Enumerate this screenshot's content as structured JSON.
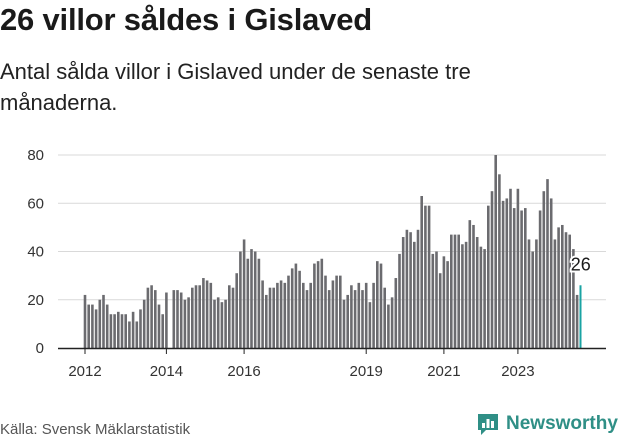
{
  "title": "26 villor såldes i Gislaved",
  "subtitle": "Antal sålda villor i Gislaved under de senaste tre månaderna.",
  "source": "Källa: Svensk Mäklarstatistik",
  "brand": {
    "name": "Newsworthy",
    "icon": "newsworthy-logo-icon",
    "color": "#2f8f86"
  },
  "colors": {
    "bar": "#6b6b6f",
    "highlight": "#1aa3a3",
    "grid": "#d9d9d9",
    "axis": "#222222"
  },
  "chart_data": {
    "type": "bar",
    "title": "26 villor såldes i Gislaved",
    "xlabel": "",
    "ylabel": "",
    "ylim": [
      0,
      80
    ],
    "yticks": [
      0,
      20,
      40,
      60,
      80
    ],
    "xticks": [
      {
        "label": "2012",
        "index": 0
      },
      {
        "label": "2014",
        "index": 22
      },
      {
        "label": "2016",
        "index": 43
      },
      {
        "label": "2019",
        "index": 76
      },
      {
        "label": "2021",
        "index": 97
      },
      {
        "label": "2023",
        "index": 117
      }
    ],
    "highlight_label": "26",
    "values": [
      22,
      18,
      18,
      16,
      20,
      22,
      18,
      14,
      14,
      15,
      14,
      14,
      11,
      15,
      11,
      16,
      20,
      25,
      26,
      24,
      18,
      14,
      23,
      0,
      24,
      24,
      23,
      20,
      21,
      25,
      26,
      26,
      29,
      28,
      27,
      20,
      21,
      19,
      20,
      26,
      25,
      31,
      40,
      45,
      37,
      41,
      40,
      37,
      28,
      22,
      25,
      25,
      27,
      28,
      27,
      30,
      33,
      35,
      32,
      27,
      24,
      27,
      35,
      36,
      37,
      30,
      24,
      28,
      30,
      30,
      20,
      22,
      26,
      24,
      27,
      24,
      27,
      19,
      27,
      36,
      35,
      25,
      18,
      21,
      29,
      39,
      46,
      49,
      48,
      44,
      49,
      63,
      59,
      59,
      39,
      40,
      31,
      38,
      36,
      47,
      47,
      47,
      43,
      44,
      53,
      51,
      46,
      42,
      41,
      59,
      65,
      80,
      72,
      61,
      62,
      66,
      58,
      66,
      57,
      58,
      45,
      40,
      45,
      57,
      65,
      70,
      62,
      45,
      50,
      51,
      48,
      47,
      41,
      22,
      26
    ],
    "highlight_index": 134
  }
}
